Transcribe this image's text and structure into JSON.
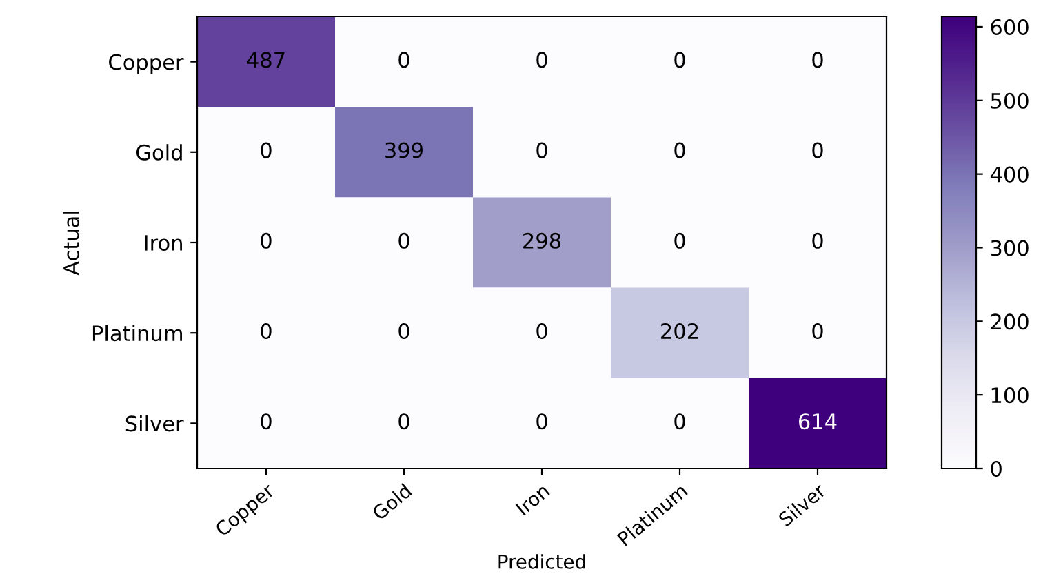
{
  "chart_data": {
    "type": "heatmap",
    "xlabel": "Predicted",
    "ylabel": "Actual",
    "categories": [
      "Copper",
      "Gold",
      "Iron",
      "Platinum",
      "Silver"
    ],
    "y_categories": [
      "Copper",
      "Gold",
      "Iron",
      "Platinum",
      "Silver"
    ],
    "cells": [
      [
        487,
        0,
        0,
        0,
        0
      ],
      [
        0,
        399,
        0,
        0,
        0
      ],
      [
        0,
        0,
        298,
        0,
        0
      ],
      [
        0,
        0,
        0,
        202,
        0
      ],
      [
        0,
        0,
        0,
        0,
        614
      ]
    ],
    "clim": [
      0,
      614
    ],
    "cticks": [
      0,
      100,
      200,
      300,
      400,
      500,
      600
    ],
    "data_labels": true,
    "grid": false
  }
}
